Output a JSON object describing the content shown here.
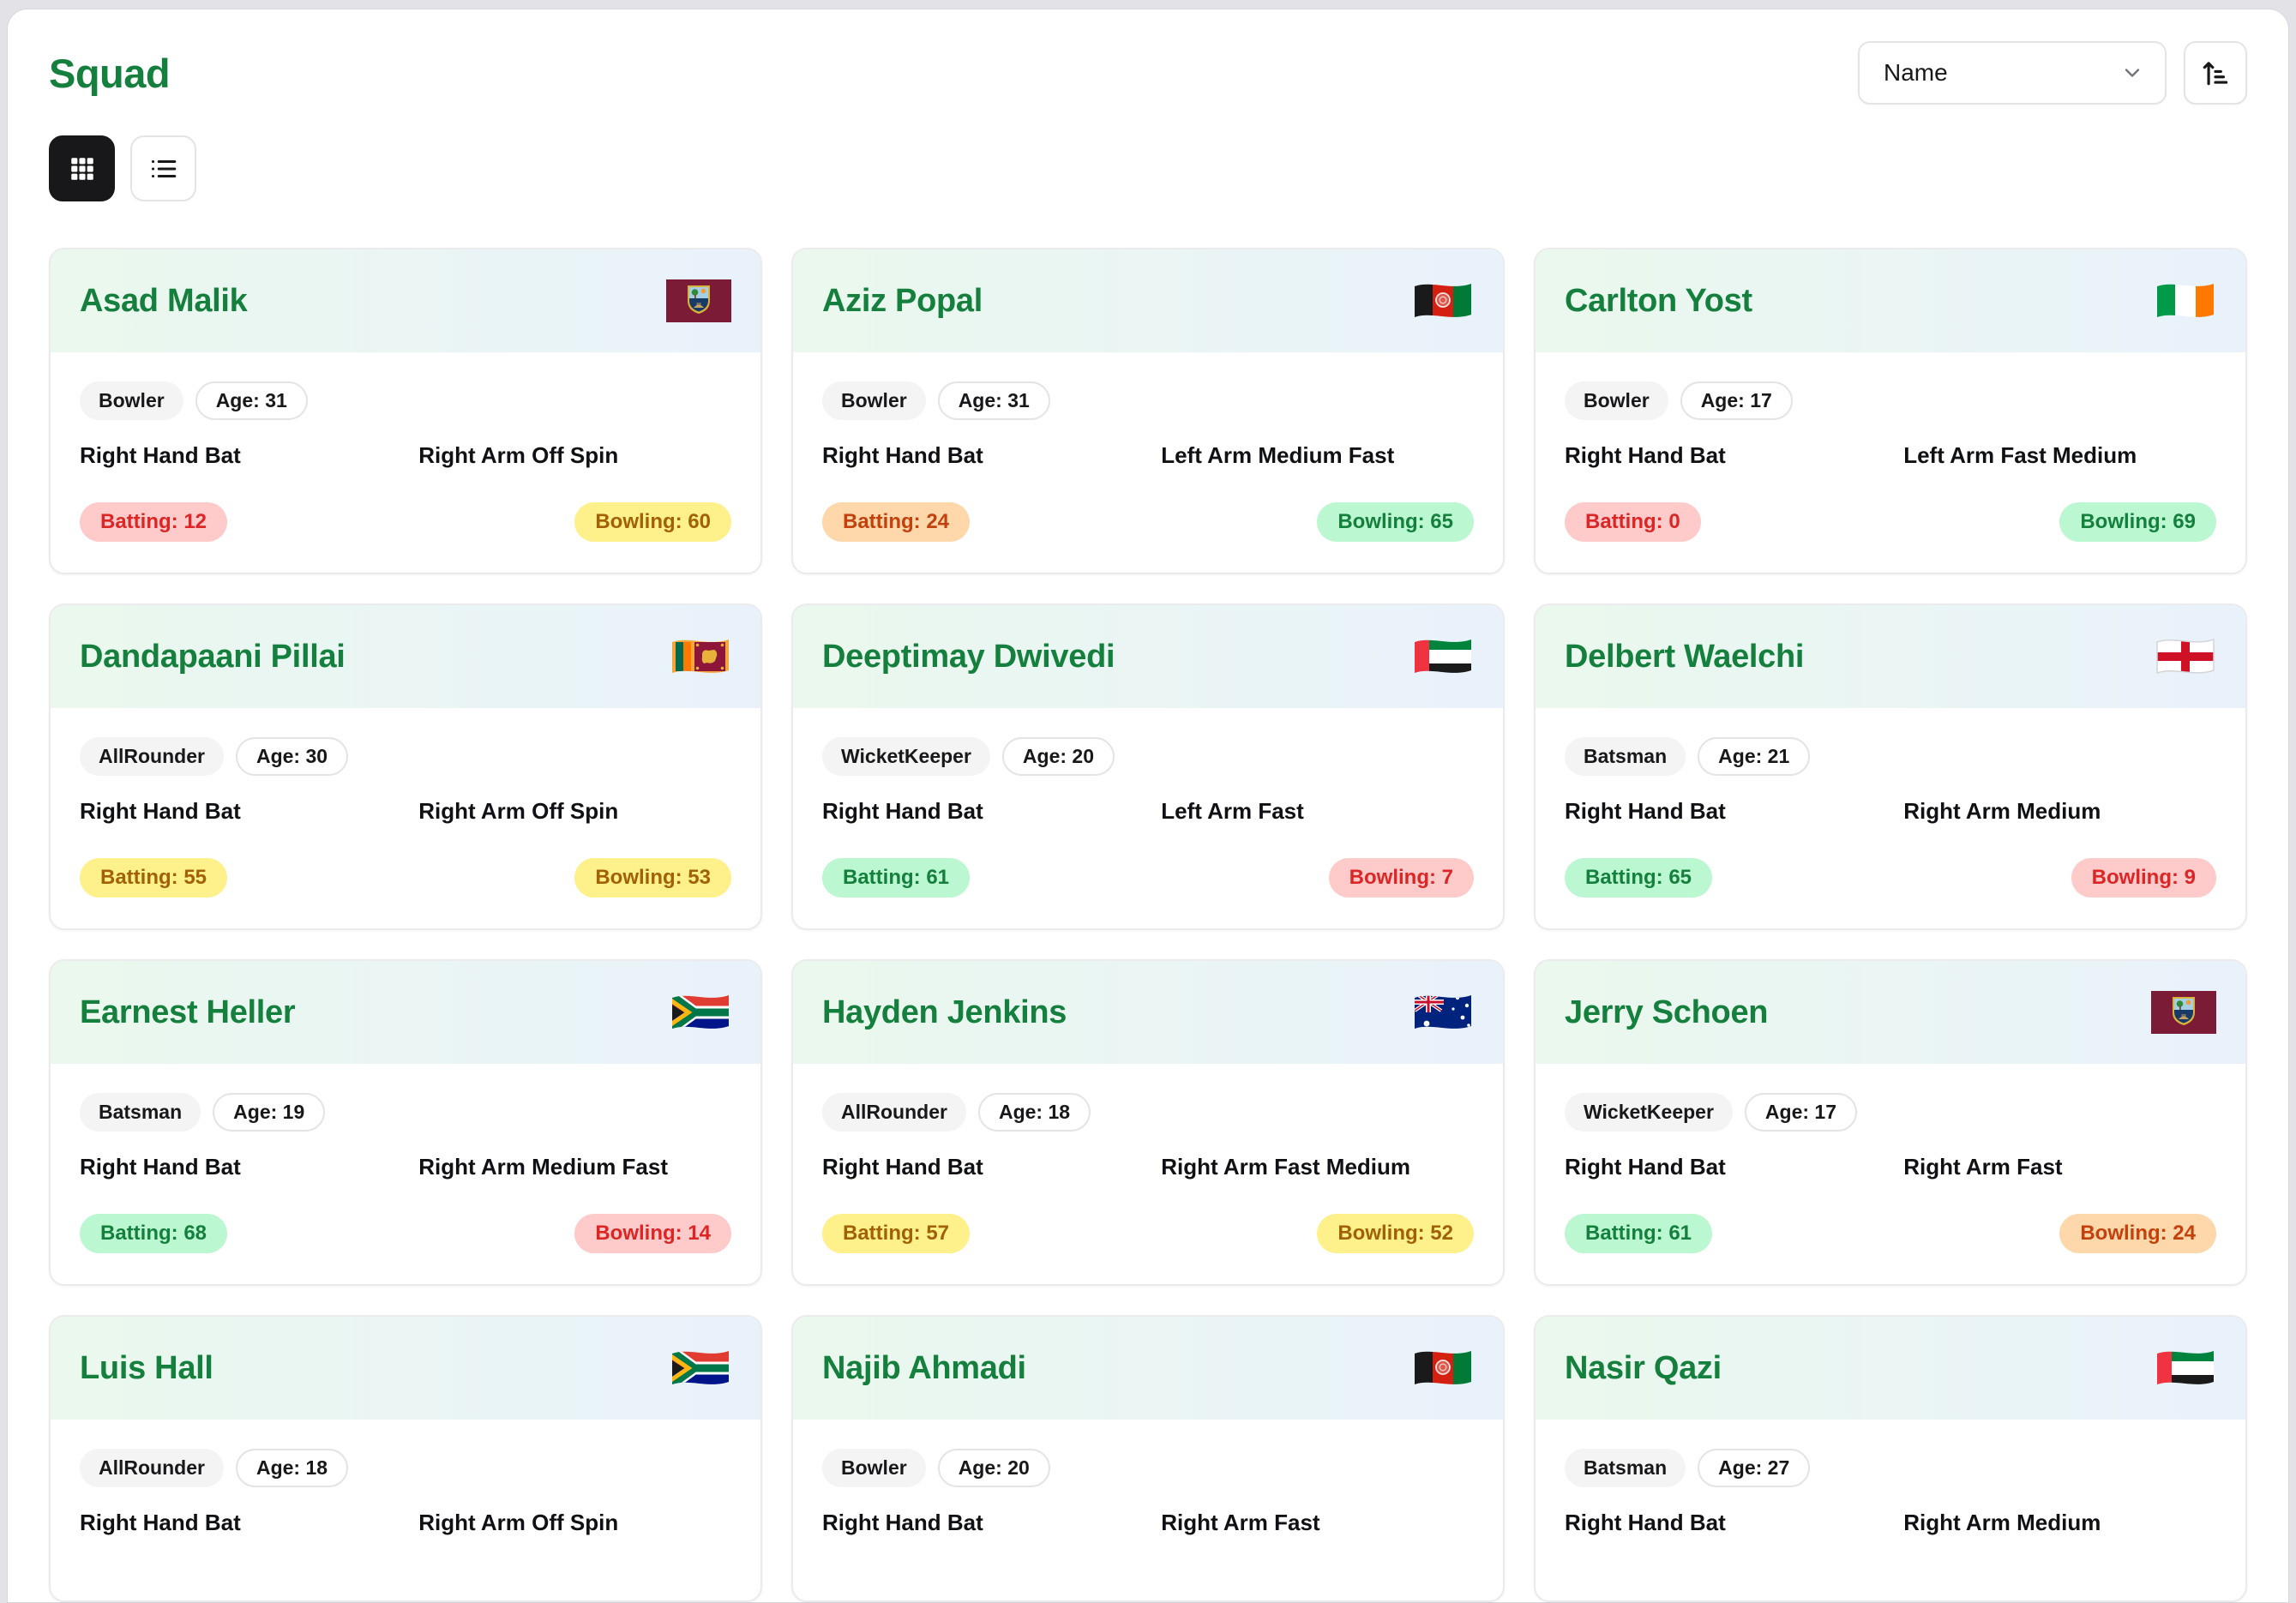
{
  "header": {
    "title": "Squad",
    "sort_selected": "Name"
  },
  "icons": {
    "sort_direction": "arrow-up-narrow-wide-icon",
    "sort_dropdown": "chevron-down-icon",
    "grid_view": "grid-icon",
    "list_view": "list-icon"
  },
  "labels": {
    "age_prefix": "Age: ",
    "batting_prefix": "Batting: ",
    "bowling_prefix": "Bowling: "
  },
  "skill_colors": {
    "green": {
      "bg": "#bbf7d0",
      "text": "#15803d"
    },
    "yellow": {
      "bg": "#fef08a",
      "text": "#a16207"
    },
    "orange": {
      "bg": "#fed7aa",
      "text": "#c2410c"
    },
    "red": {
      "bg": "#fecaca",
      "text": "#dc2626"
    }
  },
  "skill_thresholds": {
    "green_min": 61,
    "yellow_min": 50,
    "orange_min": 20
  },
  "accent_color": "#15803d",
  "players": [
    {
      "name": "Asad Malik",
      "country": "west-indies",
      "role": "Bowler",
      "age": 31,
      "batting_style": "Right Hand Bat",
      "bowling_style": "Right Arm Off Spin",
      "batting": 12,
      "bowling": 60
    },
    {
      "name": "Aziz Popal",
      "country": "afghanistan",
      "role": "Bowler",
      "age": 31,
      "batting_style": "Right Hand Bat",
      "bowling_style": "Left Arm Medium Fast",
      "batting": 24,
      "bowling": 65
    },
    {
      "name": "Carlton Yost",
      "country": "ireland",
      "role": "Bowler",
      "age": 17,
      "batting_style": "Right Hand Bat",
      "bowling_style": "Left Arm Fast Medium",
      "batting": 0,
      "bowling": 69
    },
    {
      "name": "Dandapaani Pillai",
      "country": "sri-lanka",
      "role": "AllRounder",
      "age": 30,
      "batting_style": "Right Hand Bat",
      "bowling_style": "Right Arm Off Spin",
      "batting": 55,
      "bowling": 53
    },
    {
      "name": "Deeptimay Dwivedi",
      "country": "uae",
      "role": "WicketKeeper",
      "age": 20,
      "batting_style": "Right Hand Bat",
      "bowling_style": "Left Arm Fast",
      "batting": 61,
      "bowling": 7
    },
    {
      "name": "Delbert Waelchi",
      "country": "england",
      "role": "Batsman",
      "age": 21,
      "batting_style": "Right Hand Bat",
      "bowling_style": "Right Arm Medium",
      "batting": 65,
      "bowling": 9
    },
    {
      "name": "Earnest Heller",
      "country": "south-africa",
      "role": "Batsman",
      "age": 19,
      "batting_style": "Right Hand Bat",
      "bowling_style": "Right Arm Medium Fast",
      "batting": 68,
      "bowling": 14
    },
    {
      "name": "Hayden Jenkins",
      "country": "australia",
      "role": "AllRounder",
      "age": 18,
      "batting_style": "Right Hand Bat",
      "bowling_style": "Right Arm Fast Medium",
      "batting": 57,
      "bowling": 52
    },
    {
      "name": "Jerry Schoen",
      "country": "west-indies",
      "role": "WicketKeeper",
      "age": 17,
      "batting_style": "Right Hand Bat",
      "bowling_style": "Right Arm Fast",
      "batting": 61,
      "bowling": 24
    },
    {
      "name": "Luis Hall",
      "country": "south-africa",
      "role": "AllRounder",
      "age": 18,
      "batting_style": "Right Hand Bat",
      "bowling_style": "Right Arm Off Spin",
      "batting": null,
      "bowling": null
    },
    {
      "name": "Najib Ahmadi",
      "country": "afghanistan",
      "role": "Bowler",
      "age": 20,
      "batting_style": "Right Hand Bat",
      "bowling_style": "Right Arm Fast",
      "batting": null,
      "bowling": null
    },
    {
      "name": "Nasir Qazi",
      "country": "uae",
      "role": "Batsman",
      "age": 27,
      "batting_style": "Right Hand Bat",
      "bowling_style": "Right Arm Medium",
      "batting": null,
      "bowling": null
    }
  ]
}
